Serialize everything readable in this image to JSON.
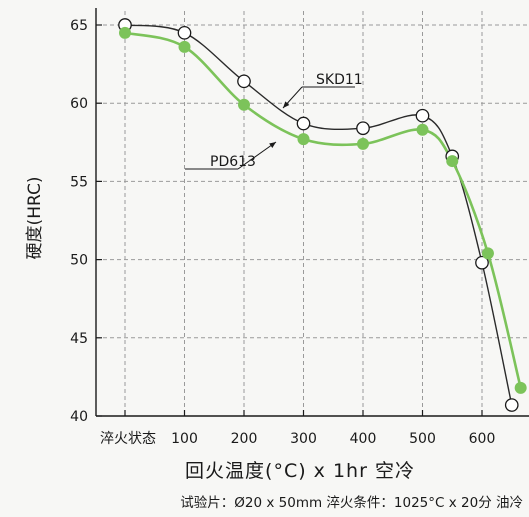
{
  "chart_data": {
    "type": "line",
    "title": "",
    "xlabel": "回火温度(°C) x 1hr 空冷",
    "ylabel": "硬度(HRC)",
    "categories": [
      "淬火状态",
      "100",
      "200",
      "300",
      "400",
      "500",
      "600"
    ],
    "ylim": [
      40,
      65
    ],
    "yticks": [
      40,
      45,
      50,
      55,
      60,
      65
    ],
    "grid": "dashed",
    "series": [
      {
        "name": "SKD11",
        "color": "#2a2a2a",
        "marker": "open-circle",
        "x": [
          0,
          100,
          200,
          300,
          400,
          500,
          550,
          600,
          650
        ],
        "values": [
          65.0,
          64.5,
          61.4,
          58.7,
          58.4,
          59.2,
          56.6,
          49.8,
          40.7
        ]
      },
      {
        "name": "PD613",
        "color": "#7cc35a",
        "marker": "filled-circle",
        "x": [
          0,
          100,
          200,
          300,
          400,
          500,
          550,
          610,
          665
        ],
        "values": [
          64.5,
          63.6,
          59.9,
          57.7,
          57.4,
          58.3,
          56.3,
          50.4,
          41.8
        ]
      }
    ],
    "footnote": "试验片：Ø20 x 50mm  淬火条件：1025°C x 20分 油冷"
  }
}
